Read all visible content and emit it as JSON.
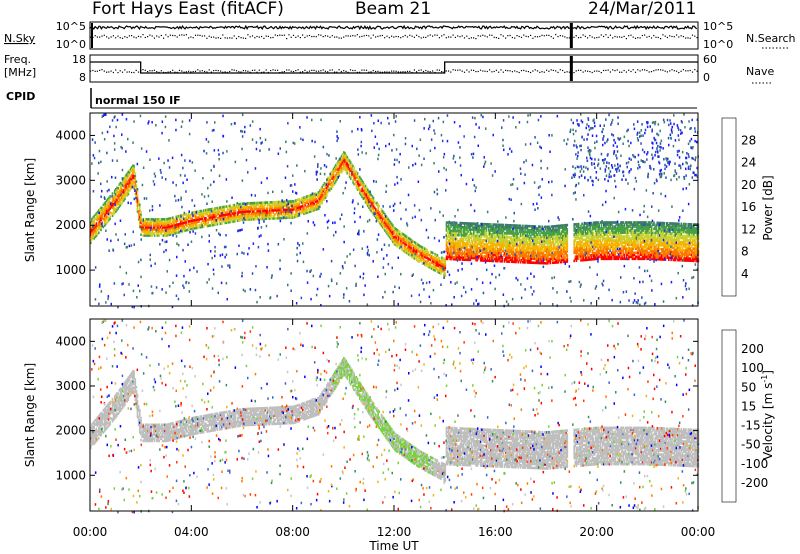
{
  "header": {
    "station": "Fort Hays East (fitACF)",
    "beam": "Beam 21",
    "date": "24/Mar/2011"
  },
  "status_panels": {
    "nsky_label": "N.Sky",
    "nsky_ticks": [
      "10^5",
      "10^0"
    ],
    "nsearch_label": "N.Search",
    "nsearch_ticks": [
      "10^5",
      "10^0"
    ],
    "freq_label_1": "Freq.",
    "freq_label_2": "[MHz]",
    "freq_ticks": [
      "18",
      "8"
    ],
    "nave_label": "Nave",
    "nave_ticks": [
      "60",
      "0"
    ],
    "cpid_label": "CPID",
    "cpid_value": "normal 150 IF"
  },
  "colors": {
    "power_scale": [
      "#1a1aff",
      "#2850b4",
      "#3c7a6e",
      "#46a046",
      "#c8d232",
      "#f5b400",
      "#fa7800",
      "#ff0000"
    ],
    "velocity_scale": [
      "#0000ff",
      "#3c64c8",
      "#3c8c5a",
      "#78d23c",
      "#c8c8c8",
      "#f0b41e",
      "#ff7800",
      "#ff3c00",
      "#ff0000"
    ],
    "ground_scatter": "#bebebe"
  },
  "chart_data": [
    {
      "type": "heatmap",
      "name": "power",
      "ylabel": "Slant Range [km]",
      "yticks": [
        1000,
        2000,
        3000,
        4000
      ],
      "ylim": [
        200,
        4500
      ],
      "xlim": [
        0,
        24
      ],
      "colorbar_label": "Power [dB]",
      "colorbar_ticks": [
        "28",
        "24",
        "20",
        "16",
        "12",
        "8",
        "4"
      ],
      "colorbar_range": [
        0,
        30
      ],
      "echo_band_center_km": [
        [
          0,
          1900
        ],
        [
          1,
          2600
        ],
        [
          1.7,
          3150
        ],
        [
          2,
          2000
        ],
        [
          3,
          2000
        ],
        [
          4,
          2150
        ],
        [
          6,
          2350
        ],
        [
          8,
          2400
        ],
        [
          9,
          2600
        ],
        [
          10,
          3500
        ],
        [
          11,
          2600
        ],
        [
          12,
          1800
        ],
        [
          13,
          1400
        ],
        [
          14,
          1100
        ],
        [
          14.01,
          1700
        ],
        [
          16,
          1650
        ],
        [
          18,
          1600
        ],
        [
          20,
          1700
        ],
        [
          22,
          1700
        ],
        [
          24,
          1650
        ]
      ]
    },
    {
      "type": "heatmap",
      "name": "velocity",
      "ylabel": "Slant Range [km]",
      "yticks": [
        1000,
        2000,
        3000,
        4000
      ],
      "ylim": [
        200,
        4500
      ],
      "xlim": [
        0,
        24
      ],
      "xlabel": "Time UT",
      "xticks": [
        "00:00",
        "04:00",
        "08:00",
        "12:00",
        "16:00",
        "20:00",
        "00:00"
      ],
      "colorbar_label": "Velocity [m s^-1]",
      "colorbar_ticks": [
        "200",
        "100",
        "50",
        "15",
        "-15",
        "-50",
        "-100",
        "-200"
      ],
      "colorbar_range": [
        -250,
        250
      ]
    }
  ]
}
